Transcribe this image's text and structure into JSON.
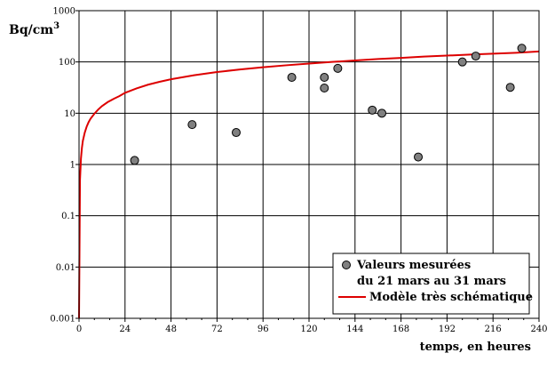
{
  "chart_data": {
    "type": "scatter",
    "title": "",
    "ylabel": "Bq/cm",
    "ylabel_superscript": "3",
    "xlabel": "temps, en heures",
    "x_ticks": [
      0,
      24,
      48,
      72,
      96,
      120,
      144,
      168,
      192,
      216,
      240
    ],
    "y_ticks": [
      0.001,
      0.01,
      0.1,
      1,
      10,
      100,
      1000
    ],
    "y_tick_labels": [
      "0.001",
      "0.01",
      "0.1",
      "1",
      "10",
      "100",
      "1000"
    ],
    "xlim": [
      0,
      240
    ],
    "ylim": [
      0.001,
      1000
    ],
    "y_scale": "log",
    "grid": true,
    "legend_position": "bottom-right",
    "legend": {
      "measured_line1": "Valeurs mesurées",
      "measured_line2": "du 21 mars au 31 mars",
      "model": "Modèle très schématique"
    },
    "colors": {
      "points": "#808080",
      "model": "#dd0000"
    },
    "measured": [
      {
        "x": 29,
        "y": 1.2
      },
      {
        "x": 59,
        "y": 6
      },
      {
        "x": 82,
        "y": 4.2
      },
      {
        "x": 111,
        "y": 50
      },
      {
        "x": 128,
        "y": 50
      },
      {
        "x": 128,
        "y": 31
      },
      {
        "x": 135,
        "y": 75
      },
      {
        "x": 153,
        "y": 11.5
      },
      {
        "x": 158,
        "y": 10
      },
      {
        "x": 177,
        "y": 1.4
      },
      {
        "x": 200,
        "y": 100
      },
      {
        "x": 207,
        "y": 130
      },
      {
        "x": 225,
        "y": 32
      },
      {
        "x": 231,
        "y": 185
      }
    ],
    "model_curve": {
      "x": [
        0,
        0.5,
        1,
        1.5,
        2,
        3,
        4,
        5,
        6,
        8,
        10,
        12,
        15,
        18,
        21,
        24,
        30,
        36,
        42,
        48,
        60,
        72,
        84,
        96,
        108,
        120,
        132,
        144,
        156,
        168,
        180,
        192,
        204,
        216,
        228,
        240
      ],
      "y": [
        0.001,
        0.5,
        1.3,
        2.1,
        2.9,
        4.2,
        5.5,
        6.7,
        7.8,
        9.8,
        11.8,
        13.8,
        16.5,
        19,
        21.5,
        25,
        30.5,
        36,
        41,
        46,
        55,
        63.5,
        71.5,
        79,
        86,
        93,
        100,
        107,
        114,
        120,
        127,
        133,
        139,
        145,
        151,
        160
      ]
    }
  }
}
